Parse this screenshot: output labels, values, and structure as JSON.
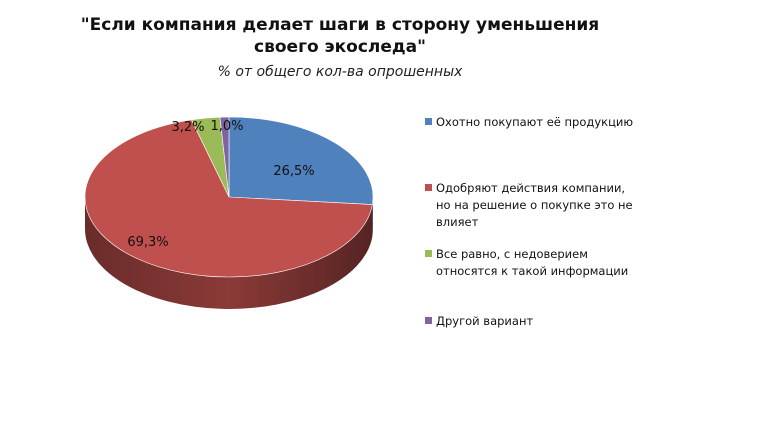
{
  "chart_data": {
    "type": "pie",
    "title": "\"Если компания делает шаги в сторону уменьшения своего экоследа\"",
    "title_line1": "\"Если компания делает шаги в сторону уменьшения",
    "title_line2": "своего экоследа\"",
    "subtitle": "% от общего кол-ва опрошенных",
    "legend_position": "right",
    "slices": [
      {
        "name": "Охотно покупают её продукцию",
        "value": 26.5,
        "label": "26,5%",
        "color": "#4f81bd"
      },
      {
        "name": "Одобряют действия компании, но на решение о покупке это не влияет",
        "value": 69.3,
        "label": "69,3%",
        "color": "#c0504d"
      },
      {
        "name": "Все равно, с недоверием относятся к такой информации",
        "value": 3.2,
        "label": "3,2%",
        "color": "#9bbb59"
      },
      {
        "name": "Другой вариант",
        "value": 1.0,
        "label": "1,0%",
        "color": "#8064a2"
      }
    ],
    "legend": [
      {
        "lines": [
          "Охотно покупают её продукцию"
        ]
      },
      {
        "lines": [
          "Одобряют действия компании,",
          "но на решение о покупке это не",
          "влияет"
        ]
      },
      {
        "lines": [
          "Все равно, с недоверием",
          "относятся к такой информации"
        ]
      },
      {
        "lines": [
          "Другой вариант"
        ]
      }
    ]
  }
}
